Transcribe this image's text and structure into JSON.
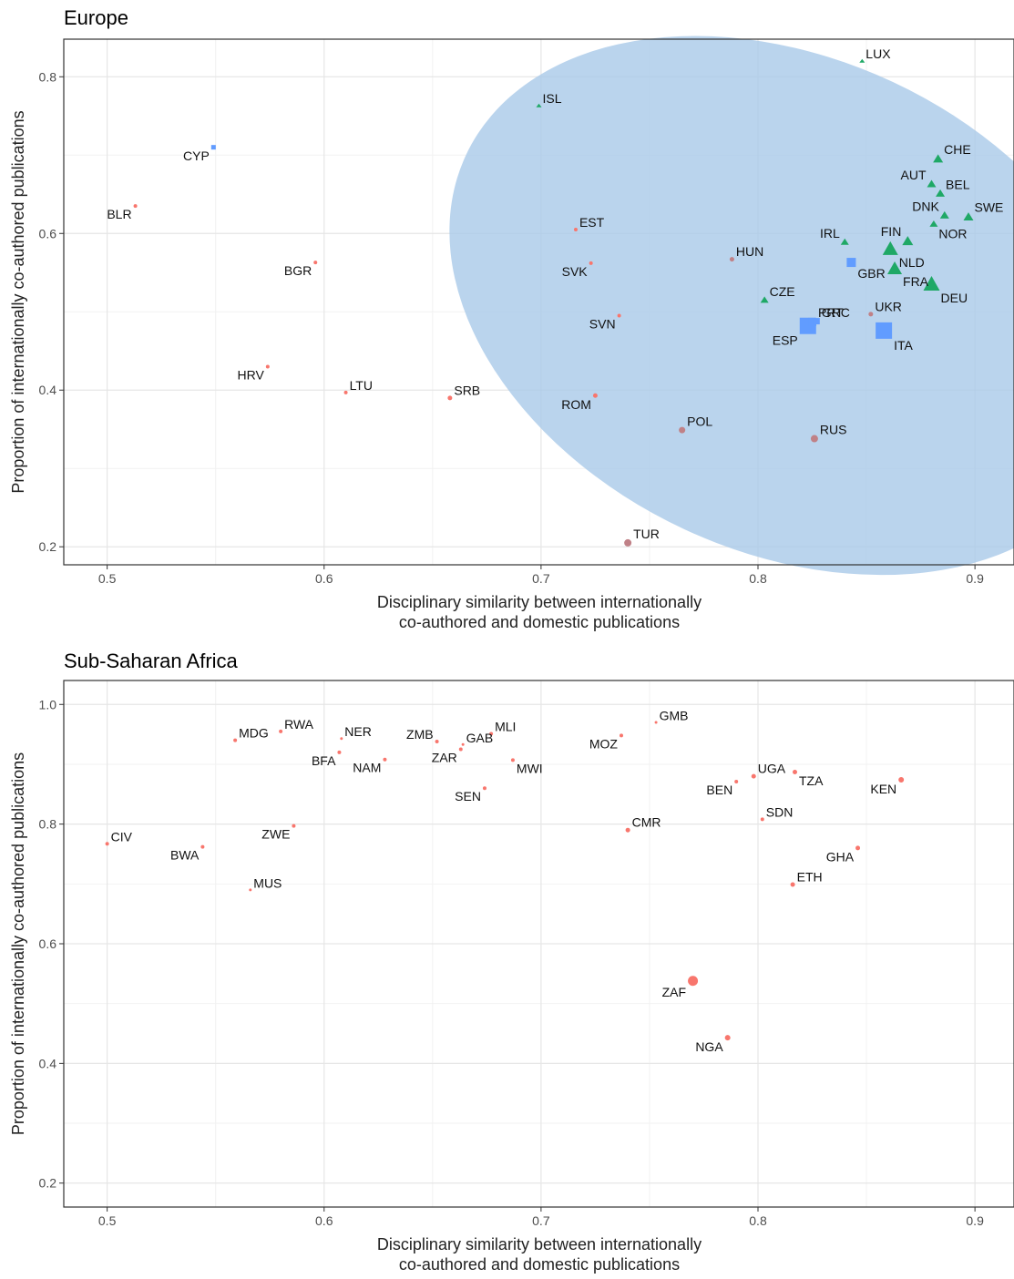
{
  "charts": [
    {
      "id": "europe",
      "type": "scatter",
      "title": "Europe",
      "xlabel_lines": [
        "Disciplinary similarity between internationally",
        "co-authored and domestic publications"
      ],
      "ylabel": "Proportion of internationally co-authored publications",
      "xlim": [
        0.48,
        0.918
      ],
      "ylim": [
        0.177,
        0.848
      ],
      "xticks": [
        0.5,
        0.6,
        0.7,
        0.8,
        0.9
      ],
      "yticks": [
        0.2,
        0.4,
        0.6,
        0.8
      ],
      "tick_labels_x": [
        "0.5",
        "0.6",
        "0.7",
        "0.8",
        "0.9"
      ],
      "tick_labels_y": [
        "0.2",
        "0.4",
        "0.6",
        "0.8"
      ],
      "grid": true,
      "colors": {
        "red": "#f8766d",
        "mauve": "#c08187",
        "blue": "#619cff",
        "green": "#1fa866",
        "ellipse": "#a9c9e9"
      },
      "ellipse": {
        "cx": 0.814,
        "cy": 0.508,
        "rx_units": 0.164,
        "ry_units": 0.315,
        "angle_deg": 25
      },
      "points": [
        {
          "label": "LUX",
          "x": 0.848,
          "y": 0.82,
          "group": "green",
          "shape": "triangle",
          "size": 4,
          "lpos": "tr"
        },
        {
          "label": "ISL",
          "x": 0.699,
          "y": 0.763,
          "group": "green",
          "shape": "triangle",
          "size": 4,
          "lpos": "tr"
        },
        {
          "label": "CYP",
          "x": 0.549,
          "y": 0.71,
          "group": "blue",
          "shape": "square",
          "size": 5,
          "lpos": "bl"
        },
        {
          "label": "BLR",
          "x": 0.513,
          "y": 0.635,
          "group": "red",
          "shape": "circle",
          "size": 4,
          "lpos": "bl"
        },
        {
          "label": "BGR",
          "x": 0.596,
          "y": 0.563,
          "group": "red",
          "shape": "circle",
          "size": 4,
          "lpos": "bl"
        },
        {
          "label": "EST",
          "x": 0.716,
          "y": 0.605,
          "group": "red",
          "shape": "circle",
          "size": 4,
          "lpos": "tr"
        },
        {
          "label": "SVK",
          "x": 0.723,
          "y": 0.562,
          "group": "red",
          "shape": "circle",
          "size": 4,
          "lpos": "bl"
        },
        {
          "label": "SVN",
          "x": 0.736,
          "y": 0.495,
          "group": "red",
          "shape": "circle",
          "size": 4,
          "lpos": "bl"
        },
        {
          "label": "HRV",
          "x": 0.574,
          "y": 0.43,
          "group": "red",
          "shape": "circle",
          "size": 4,
          "lpos": "bl"
        },
        {
          "label": "LTU",
          "x": 0.61,
          "y": 0.397,
          "group": "red",
          "shape": "circle",
          "size": 4,
          "lpos": "tr"
        },
        {
          "label": "SRB",
          "x": 0.658,
          "y": 0.39,
          "group": "red",
          "shape": "circle",
          "size": 5,
          "lpos": "tr"
        },
        {
          "label": "ROM",
          "x": 0.725,
          "y": 0.393,
          "group": "red",
          "shape": "circle",
          "size": 5,
          "lpos": "bl"
        },
        {
          "label": "HUN",
          "x": 0.788,
          "y": 0.567,
          "group": "mauve",
          "shape": "circle",
          "size": 5,
          "lpos": "tr"
        },
        {
          "label": "POL",
          "x": 0.765,
          "y": 0.349,
          "group": "mauve",
          "shape": "circle",
          "size": 7,
          "lpos": "tr"
        },
        {
          "label": "RUS",
          "x": 0.826,
          "y": 0.338,
          "group": "mauve",
          "shape": "circle",
          "size": 8,
          "lpos": "tr"
        },
        {
          "label": "TUR",
          "x": 0.74,
          "y": 0.205,
          "group": "mauve",
          "shape": "circle",
          "size": 8,
          "lpos": "tr"
        },
        {
          "label": "UKR",
          "x": 0.852,
          "y": 0.497,
          "group": "mauve",
          "shape": "circle",
          "size": 5,
          "lpos": "tr"
        },
        {
          "label": "CZE",
          "x": 0.803,
          "y": 0.515,
          "group": "green",
          "shape": "triangle",
          "size": 7,
          "lpos": "tr"
        },
        {
          "label": "IRL",
          "x": 0.84,
          "y": 0.589,
          "group": "green",
          "shape": "triangle",
          "size": 7,
          "lpos": "tl"
        },
        {
          "label": "FIN",
          "x": 0.869,
          "y": 0.59,
          "group": "green",
          "shape": "triangle",
          "size": 10,
          "lpos": "tl"
        },
        {
          "label": "NLD",
          "x": 0.861,
          "y": 0.58,
          "group": "green",
          "shape": "triangle",
          "size": 15,
          "lpos": "br"
        },
        {
          "label": "GBR",
          "x": 0.843,
          "y": 0.563,
          "group": "blue",
          "shape": "square",
          "size": 10,
          "lpos": "br"
        },
        {
          "label": "FRA",
          "x": 0.863,
          "y": 0.555,
          "group": "green",
          "shape": "triangle",
          "size": 14,
          "lpos": "br"
        },
        {
          "label": "DEU",
          "x": 0.88,
          "y": 0.535,
          "group": "green",
          "shape": "triangle",
          "size": 16,
          "lpos": "br"
        },
        {
          "label": "CHE",
          "x": 0.883,
          "y": 0.695,
          "group": "green",
          "shape": "triangle",
          "size": 9,
          "lpos": "tr"
        },
        {
          "label": "AUT",
          "x": 0.88,
          "y": 0.663,
          "group": "green",
          "shape": "triangle",
          "size": 8,
          "lpos": "tl"
        },
        {
          "label": "BEL",
          "x": 0.884,
          "y": 0.651,
          "group": "green",
          "shape": "triangle",
          "size": 8,
          "lpos": "tr"
        },
        {
          "label": "DNK",
          "x": 0.886,
          "y": 0.623,
          "group": "green",
          "shape": "triangle",
          "size": 8,
          "lpos": "tl"
        },
        {
          "label": "NOR",
          "x": 0.881,
          "y": 0.612,
          "group": "green",
          "shape": "triangle",
          "size": 7,
          "lpos": "br"
        },
        {
          "label": "SWE",
          "x": 0.897,
          "y": 0.621,
          "group": "green",
          "shape": "triangle",
          "size": 9,
          "lpos": "tr"
        },
        {
          "label": "PRT",
          "x": 0.825,
          "y": 0.487,
          "group": "blue",
          "shape": "square",
          "size": 9,
          "lpos": "tr"
        },
        {
          "label": "GRC",
          "x": 0.827,
          "y": 0.488,
          "group": "blue",
          "shape": "square",
          "size": 7,
          "lpos": "tr"
        },
        {
          "label": "ESP",
          "x": 0.823,
          "y": 0.482,
          "group": "blue",
          "shape": "square",
          "size": 18,
          "lpos": "bl"
        },
        {
          "label": "ITA",
          "x": 0.858,
          "y": 0.476,
          "group": "blue",
          "shape": "square",
          "size": 18,
          "lpos": "br"
        }
      ]
    },
    {
      "id": "africa",
      "type": "scatter",
      "title": "Sub-Saharan Africa",
      "xlabel_lines": [
        "Disciplinary similarity between internationally",
        "co-authored and domestic publications"
      ],
      "ylabel": "Proportion of internationally co-authored publications",
      "xlim": [
        0.48,
        0.918
      ],
      "ylim": [
        0.16,
        1.04
      ],
      "xticks": [
        0.5,
        0.6,
        0.7,
        0.8,
        0.9
      ],
      "yticks": [
        0.2,
        0.4,
        0.6,
        0.8,
        1.0
      ],
      "tick_labels_x": [
        "0.5",
        "0.6",
        "0.7",
        "0.8",
        "0.9"
      ],
      "tick_labels_y": [
        "0.2",
        "0.4",
        "0.6",
        "0.8",
        "1.0"
      ],
      "grid": true,
      "colors": {
        "red": "#f8766d"
      },
      "points": [
        {
          "label": "GMB",
          "x": 0.753,
          "y": 0.97,
          "group": "red",
          "shape": "circle",
          "size": 3,
          "lpos": "tr"
        },
        {
          "label": "RWA",
          "x": 0.58,
          "y": 0.955,
          "group": "red",
          "shape": "circle",
          "size": 4,
          "lpos": "tr"
        },
        {
          "label": "MDG",
          "x": 0.559,
          "y": 0.94,
          "group": "red",
          "shape": "circle",
          "size": 4,
          "lpos": "tr"
        },
        {
          "label": "NER",
          "x": 0.608,
          "y": 0.943,
          "group": "red",
          "shape": "circle",
          "size": 3,
          "lpos": "tr"
        },
        {
          "label": "ZMB",
          "x": 0.652,
          "y": 0.938,
          "group": "red",
          "shape": "circle",
          "size": 4,
          "lpos": "tl"
        },
        {
          "label": "GAB",
          "x": 0.664,
          "y": 0.933,
          "group": "red",
          "shape": "circle",
          "size": 3,
          "lpos": "tr"
        },
        {
          "label": "MLI",
          "x": 0.677,
          "y": 0.951,
          "group": "red",
          "shape": "circle",
          "size": 4,
          "lpos": "tr"
        },
        {
          "label": "MOZ",
          "x": 0.737,
          "y": 0.948,
          "group": "red",
          "shape": "circle",
          "size": 4,
          "lpos": "bl"
        },
        {
          "label": "BFA",
          "x": 0.607,
          "y": 0.92,
          "group": "red",
          "shape": "circle",
          "size": 4,
          "lpos": "bl"
        },
        {
          "label": "NAM",
          "x": 0.628,
          "y": 0.908,
          "group": "red",
          "shape": "circle",
          "size": 4,
          "lpos": "bl"
        },
        {
          "label": "ZAR",
          "x": 0.663,
          "y": 0.925,
          "group": "red",
          "shape": "circle",
          "size": 4,
          "lpos": "bl"
        },
        {
          "label": "MWI",
          "x": 0.687,
          "y": 0.907,
          "group": "red",
          "shape": "circle",
          "size": 4,
          "lpos": "br"
        },
        {
          "label": "SEN",
          "x": 0.674,
          "y": 0.86,
          "group": "red",
          "shape": "circle",
          "size": 4,
          "lpos": "bl"
        },
        {
          "label": "UGA",
          "x": 0.798,
          "y": 0.88,
          "group": "red",
          "shape": "circle",
          "size": 5,
          "lpos": "tr"
        },
        {
          "label": "TZA",
          "x": 0.817,
          "y": 0.887,
          "group": "red",
          "shape": "circle",
          "size": 5,
          "lpos": "br"
        },
        {
          "label": "BEN",
          "x": 0.79,
          "y": 0.871,
          "group": "red",
          "shape": "circle",
          "size": 4,
          "lpos": "bl"
        },
        {
          "label": "KEN",
          "x": 0.866,
          "y": 0.874,
          "group": "red",
          "shape": "circle",
          "size": 6,
          "lpos": "bl"
        },
        {
          "label": "SDN",
          "x": 0.802,
          "y": 0.808,
          "group": "red",
          "shape": "circle",
          "size": 4,
          "lpos": "tr"
        },
        {
          "label": "CMR",
          "x": 0.74,
          "y": 0.79,
          "group": "red",
          "shape": "circle",
          "size": 5,
          "lpos": "tr"
        },
        {
          "label": "GHA",
          "x": 0.846,
          "y": 0.76,
          "group": "red",
          "shape": "circle",
          "size": 5,
          "lpos": "bl"
        },
        {
          "label": "ETH",
          "x": 0.816,
          "y": 0.699,
          "group": "red",
          "shape": "circle",
          "size": 5,
          "lpos": "tr"
        },
        {
          "label": "CIV",
          "x": 0.5,
          "y": 0.767,
          "group": "red",
          "shape": "circle",
          "size": 4,
          "lpos": "tr"
        },
        {
          "label": "BWA",
          "x": 0.544,
          "y": 0.762,
          "group": "red",
          "shape": "circle",
          "size": 4,
          "lpos": "bl"
        },
        {
          "label": "ZWE",
          "x": 0.586,
          "y": 0.797,
          "group": "red",
          "shape": "circle",
          "size": 4,
          "lpos": "bl"
        },
        {
          "label": "MUS",
          "x": 0.566,
          "y": 0.69,
          "group": "red",
          "shape": "circle",
          "size": 3,
          "lpos": "tr"
        },
        {
          "label": "ZAF",
          "x": 0.77,
          "y": 0.538,
          "group": "red",
          "shape": "circle",
          "size": 11,
          "lpos": "bl"
        },
        {
          "label": "NGA",
          "x": 0.786,
          "y": 0.443,
          "group": "red",
          "shape": "circle",
          "size": 6,
          "lpos": "bl"
        }
      ]
    }
  ]
}
